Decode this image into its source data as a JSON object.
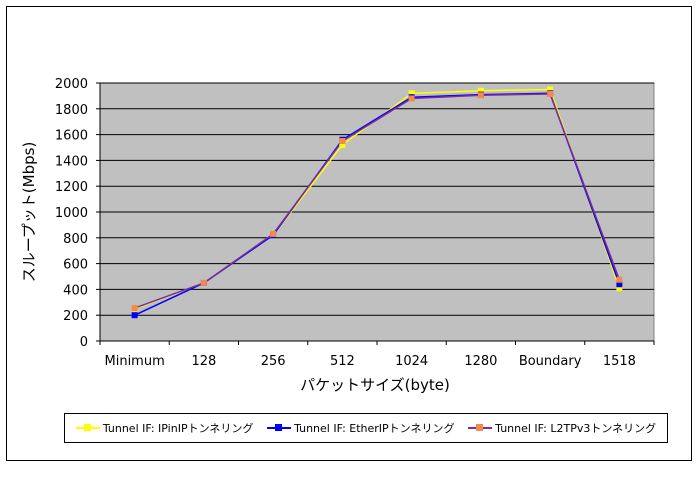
{
  "chart_data": {
    "type": "line",
    "categories": [
      "Minimum",
      "128",
      "256",
      "512",
      "1024",
      "1280",
      "Boundary",
      "1518"
    ],
    "ylabel": "スループット(Mbps)",
    "xlabel": "パケットサイズ(byte)",
    "ylim": [
      0,
      2000
    ],
    "yticks": [
      0,
      200,
      400,
      600,
      800,
      1000,
      1200,
      1400,
      1600,
      1800,
      2000
    ],
    "grid": true,
    "legend_position": "bottom",
    "series": [
      {
        "name": "Tunnel IF: IPinIPトンネリング",
        "color": "#ffff00",
        "marker": "#ffff00",
        "values": [
          250,
          450,
          820,
          1520,
          1920,
          1940,
          1950,
          410
        ]
      },
      {
        "name": "Tunnel IF: EtherIPトンネリング",
        "color": "#0000ff",
        "marker": "#0000ff",
        "values": [
          200,
          450,
          820,
          1560,
          1890,
          1910,
          1920,
          440
        ]
      },
      {
        "name": "Tunnel IF: L2TPv3トンネリング",
        "color": "#7a2f9a",
        "marker": "#f4894a",
        "values": [
          255,
          450,
          830,
          1550,
          1880,
          1905,
          1915,
          475
        ]
      }
    ]
  }
}
